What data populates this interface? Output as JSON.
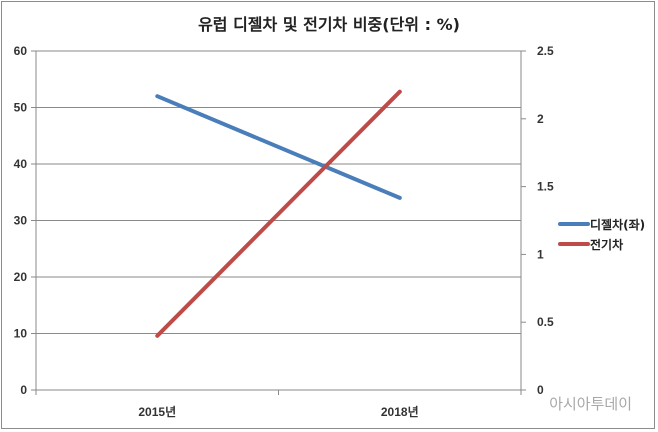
{
  "chart_data": {
    "type": "line",
    "title": "유럽 디젤차 및 전기차 비중(단위 : %)",
    "categories": [
      "2015년",
      "2018년"
    ],
    "y_left": {
      "ylim": [
        0,
        60
      ],
      "ticks": [
        "0",
        "10",
        "20",
        "30",
        "40",
        "50",
        "60"
      ]
    },
    "y_right": {
      "ylim": [
        0,
        2.5
      ],
      "ticks": [
        "0",
        "0.5",
        "1",
        "1.5",
        "2",
        "2.5"
      ]
    },
    "series": [
      {
        "name": "디젤차(좌)",
        "axis": "left",
        "color": "#4a7ebb",
        "values": [
          52,
          34
        ]
      },
      {
        "name": "전기차",
        "axis": "right",
        "color": "#be4b48",
        "values": [
          0.4,
          2.2
        ]
      }
    ],
    "grid": true,
    "legend_position": "right"
  },
  "watermark": "아시아투데이"
}
